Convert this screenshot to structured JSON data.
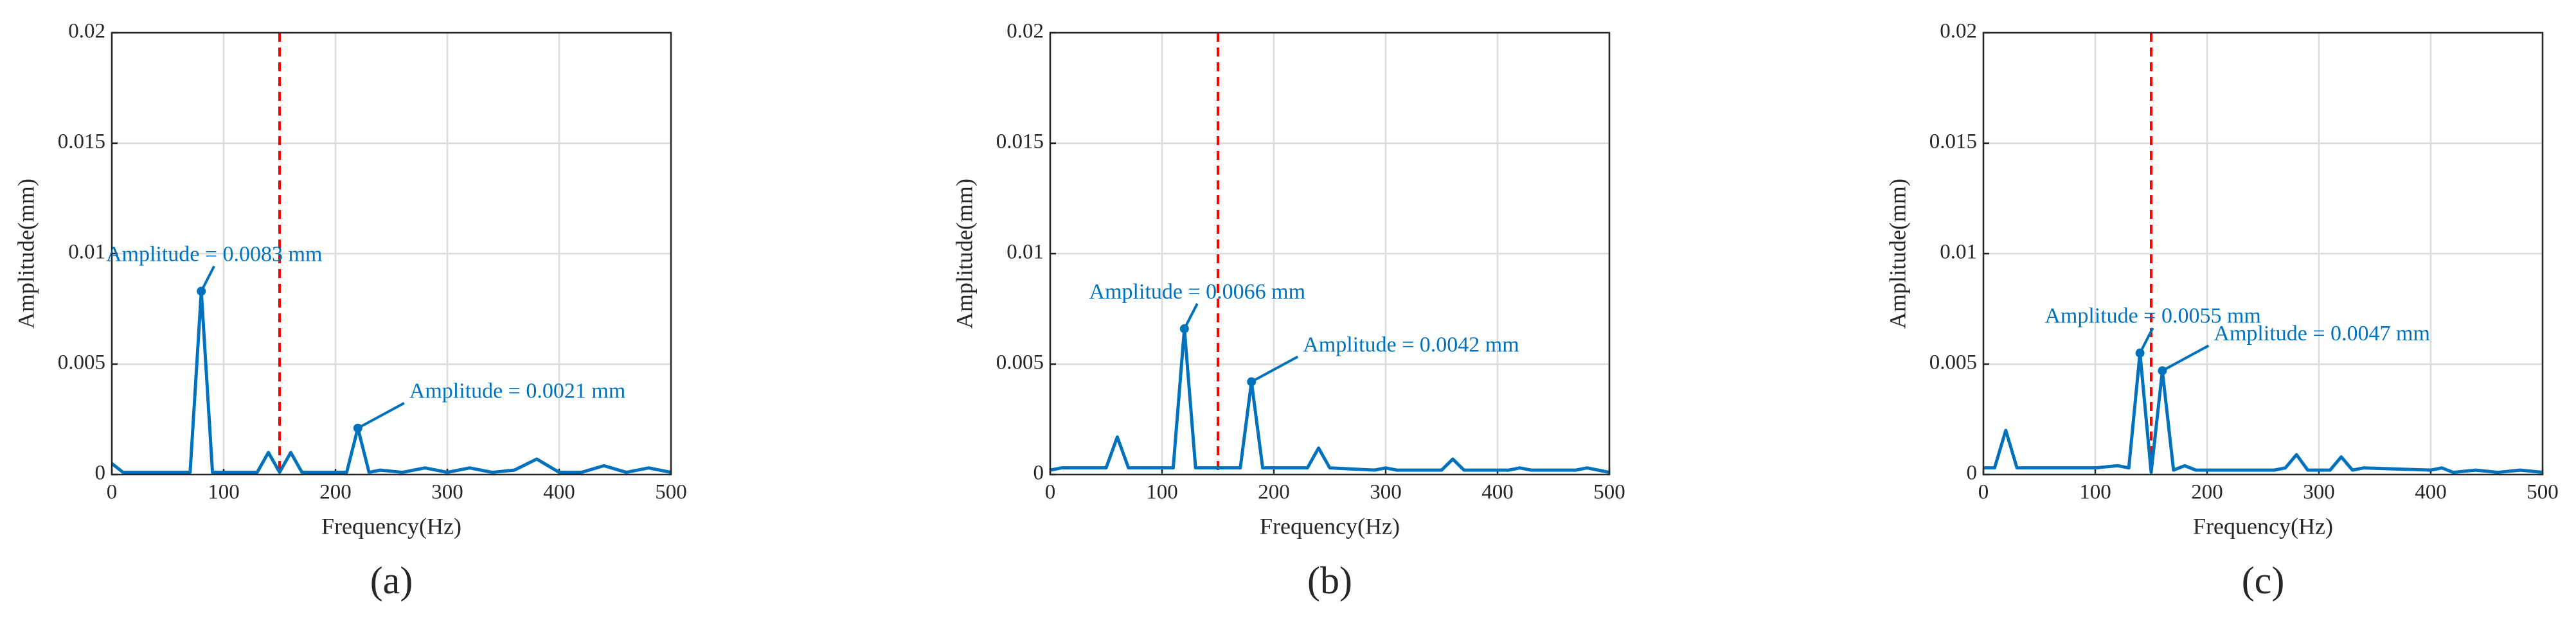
{
  "chart_data": [
    {
      "type": "line",
      "caption": "(a)",
      "xlabel": "Frequency(Hz)",
      "ylabel": "Amplitude(mm)",
      "x": [
        0,
        10,
        60,
        70,
        80,
        90,
        130,
        140,
        150,
        160,
        170,
        210,
        220,
        230,
        240,
        260,
        280,
        300,
        320,
        340,
        360,
        380,
        400,
        420,
        440,
        460,
        480,
        500
      ],
      "series": [
        {
          "color": "#0072bd",
          "values": [
            0.0005,
            0.0001,
            0.0001,
            0.0001,
            0.0083,
            0.0001,
            0.0001,
            0.001,
            0.0001,
            0.001,
            0.0001,
            0.0001,
            0.0021,
            0.0001,
            0.0002,
            0.0001,
            0.0003,
            0.0001,
            0.0003,
            0.0001,
            0.0002,
            0.0007,
            0.0001,
            0.0001,
            0.0004,
            0.0001,
            0.0003,
            0.0001
          ]
        }
      ],
      "xlim": [
        0,
        500
      ],
      "xticks": [
        0,
        100,
        200,
        300,
        400,
        500
      ],
      "ylim": [
        0,
        0.02
      ],
      "yticks": [
        0,
        0.005,
        0.01,
        0.015,
        0.02
      ],
      "grid": true,
      "reference_line": {
        "x": 150,
        "color": "#ff0000"
      },
      "annotations": [
        {
          "text": "Amplitude = 0.0083 mm",
          "x": 80,
          "y": 0.0083
        },
        {
          "text": "Amplitude = 0.0021 mm",
          "x": 220,
          "y": 0.0021
        }
      ]
    },
    {
      "type": "line",
      "caption": "(b)",
      "xlabel": "Frequency(Hz)",
      "ylabel": "Amplitude(mm)",
      "x": [
        0,
        10,
        50,
        60,
        70,
        110,
        120,
        130,
        170,
        180,
        190,
        230,
        240,
        250,
        290,
        300,
        310,
        350,
        360,
        370,
        410,
        420,
        430,
        470,
        480,
        490,
        500
      ],
      "series": [
        {
          "color": "#0072bd",
          "values": [
            0.0002,
            0.0003,
            0.0003,
            0.0017,
            0.0003,
            0.0003,
            0.0066,
            0.0003,
            0.0003,
            0.0042,
            0.0003,
            0.0003,
            0.0012,
            0.0003,
            0.0002,
            0.0003,
            0.0002,
            0.0002,
            0.0007,
            0.0002,
            0.0002,
            0.0003,
            0.0002,
            0.0002,
            0.0003,
            0.0002,
            0.0001
          ]
        }
      ],
      "xlim": [
        0,
        500
      ],
      "xticks": [
        0,
        100,
        200,
        300,
        400,
        500
      ],
      "ylim": [
        0,
        0.02
      ],
      "yticks": [
        0,
        0.005,
        0.01,
        0.015,
        0.02
      ],
      "grid": true,
      "reference_line": {
        "x": 150,
        "color": "#ff0000"
      },
      "annotations": [
        {
          "text": "Amplitude = 0.0066 mm",
          "x": 120,
          "y": 0.0066
        },
        {
          "text": "Amplitude = 0.0042 mm",
          "x": 180,
          "y": 0.0042
        }
      ]
    },
    {
      "type": "line",
      "caption": "(c)",
      "xlabel": "Frequency(Hz)",
      "ylabel": "Amplitude(mm)",
      "x": [
        0,
        10,
        20,
        30,
        100,
        120,
        130,
        140,
        150,
        160,
        170,
        180,
        190,
        260,
        270,
        280,
        290,
        310,
        320,
        330,
        340,
        400,
        410,
        420,
        440,
        460,
        480,
        500
      ],
      "series": [
        {
          "color": "#0072bd",
          "values": [
            0.0003,
            0.0003,
            0.002,
            0.0003,
            0.0003,
            0.0004,
            0.0003,
            0.0055,
            0.0001,
            0.0047,
            0.0002,
            0.0004,
            0.0002,
            0.0002,
            0.0003,
            0.0009,
            0.0002,
            0.0002,
            0.0008,
            0.0002,
            0.0003,
            0.0002,
            0.0003,
            0.0001,
            0.0002,
            0.0001,
            0.0002,
            0.0001
          ]
        }
      ],
      "xlim": [
        0,
        500
      ],
      "xticks": [
        0,
        100,
        200,
        300,
        400,
        500
      ],
      "ylim": [
        0,
        0.02
      ],
      "yticks": [
        0,
        0.005,
        0.01,
        0.015,
        0.02
      ],
      "grid": true,
      "reference_line": {
        "x": 150,
        "color": "#ff0000"
      },
      "annotations": [
        {
          "text": "Amplitude = 0.0055 mm",
          "x": 140,
          "y": 0.0055
        },
        {
          "text": "Amplitude = 0.0047 mm",
          "x": 160,
          "y": 0.0047
        }
      ]
    }
  ]
}
